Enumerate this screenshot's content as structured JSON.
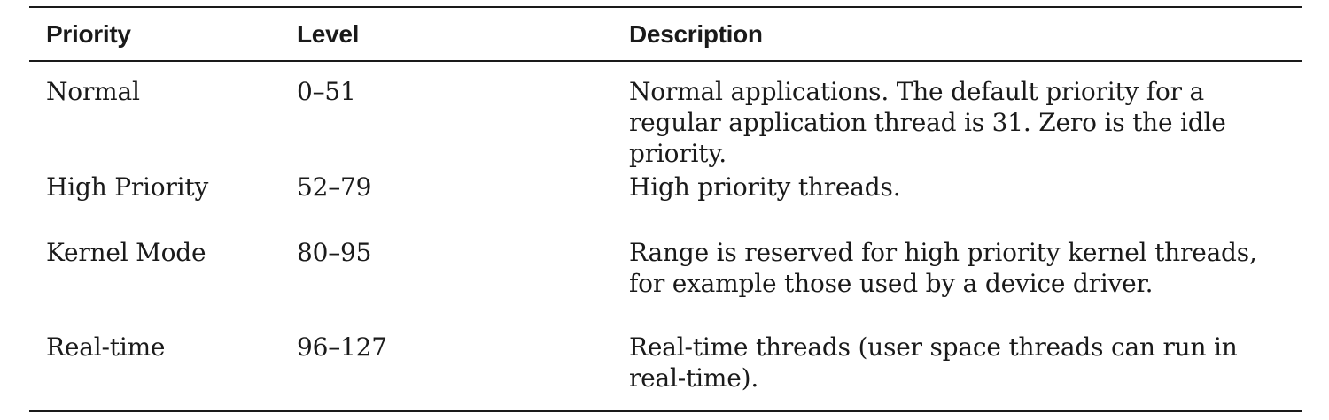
{
  "table": {
    "headers": {
      "priority": "Priority",
      "level": "Level",
      "description": "Description"
    },
    "rows": [
      {
        "priority": "Normal",
        "level": "0–51",
        "description": "Normal applications. The default priority for a regular application thread is 31. Zero is the idle priority."
      },
      {
        "priority": "High Priority",
        "level": "52–79",
        "description": "High priority threads."
      },
      {
        "priority": "Kernel Mode",
        "level": "80–95",
        "description": "Range is reserved for high priority kernel threads, for example those used by a device driver."
      },
      {
        "priority": "Real-time",
        "level": "96–127",
        "description": "Real-time threads (user space threads can run in real-time)."
      }
    ]
  }
}
